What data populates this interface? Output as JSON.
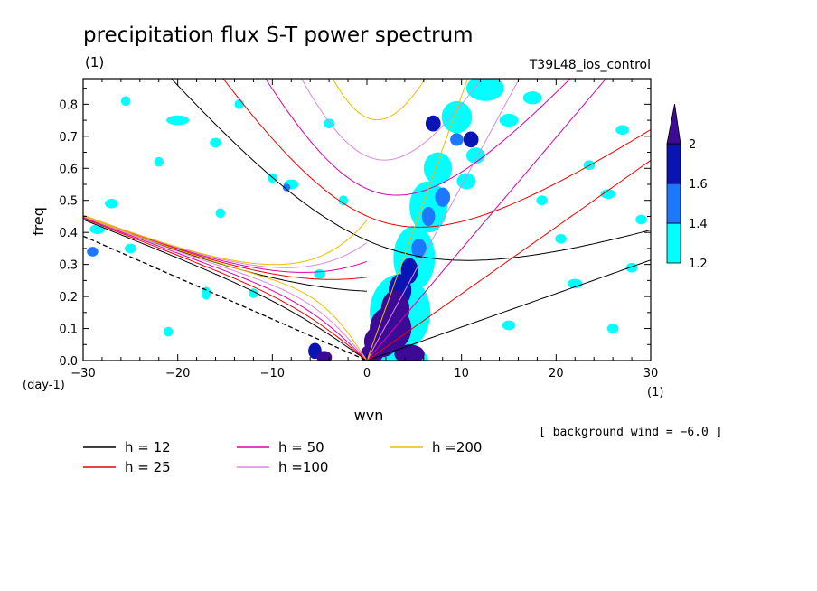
{
  "chart_data": {
    "type": "heatmap",
    "title": "precipitation flux S-T power spectrum",
    "subtitle_left": "(1)",
    "subtitle_right": "T39L48_ios_control",
    "xlabel": "wvn",
    "ylabel": "freq",
    "x_unit_label": "(1)",
    "y_unit_label": "(day-1)",
    "xlim": [
      -30,
      30
    ],
    "ylim": [
      0,
      0.88
    ],
    "x_ticks": [
      -30,
      -20,
      -10,
      0,
      10,
      20,
      30
    ],
    "x_tick_labels": [
      "−30",
      "−20",
      "−10",
      "0",
      "10",
      "20",
      "30"
    ],
    "y_ticks": [
      0,
      0.1,
      0.2,
      0.3,
      0.4,
      0.5,
      0.6,
      0.7,
      0.8
    ],
    "y_tick_labels": [
      "0.0",
      "0.1",
      "0.2",
      "0.3",
      "0.4",
      "0.5",
      "0.6",
      "0.7",
      "0.8"
    ],
    "background_wind": "[ background wind = −6.0 ]",
    "colorbar": {
      "levels": [
        1.2,
        1.4,
        1.6,
        2
      ],
      "labels": [
        "1.2",
        "1.4",
        "1.6",
        "2"
      ],
      "colors": [
        "#00ffff",
        "#1e78ff",
        "#0a14b4",
        "#3c0a96"
      ]
    },
    "legend": [
      {
        "label": "h = 12",
        "color": "#000000"
      },
      {
        "label": "h = 25",
        "color": "#ee0000"
      },
      {
        "label": "h = 50",
        "color": "#dd00aa"
      },
      {
        "label": "h =100",
        "color": "#dd88dd"
      },
      {
        "label": "h =200",
        "color": "#eebb00"
      }
    ],
    "dispersion_h": [
      12,
      25,
      50,
      100,
      200
    ],
    "blobs": [
      {
        "x": 0.5,
        "y": 0.02,
        "rx": 1.2,
        "ry": 0.03,
        "level": 3
      },
      {
        "x": 1.5,
        "y": 0.06,
        "rx": 1.8,
        "ry": 0.05,
        "level": 3
      },
      {
        "x": 2.5,
        "y": 0.1,
        "rx": 2.2,
        "ry": 0.07,
        "level": 3
      },
      {
        "x": 3.0,
        "y": 0.16,
        "rx": 1.5,
        "ry": 0.06,
        "level": 3
      },
      {
        "x": 4.5,
        "y": 0.02,
        "rx": 1.6,
        "ry": 0.03,
        "level": 3
      },
      {
        "x": 3.5,
        "y": 0.22,
        "rx": 1.2,
        "ry": 0.05,
        "level": 2
      },
      {
        "x": 4.5,
        "y": 0.28,
        "rx": 0.9,
        "ry": 0.04,
        "level": 2
      },
      {
        "x": 5.5,
        "y": 0.35,
        "rx": 0.8,
        "ry": 0.03,
        "level": 1
      },
      {
        "x": 6.5,
        "y": 0.45,
        "rx": 0.7,
        "ry": 0.03,
        "level": 1
      },
      {
        "x": 8.0,
        "y": 0.51,
        "rx": 0.8,
        "ry": 0.03,
        "level": 1
      },
      {
        "x": 7.0,
        "y": 0.74,
        "rx": 0.8,
        "ry": 0.025,
        "level": 2
      },
      {
        "x": 11.0,
        "y": 0.69,
        "rx": 0.8,
        "ry": 0.025,
        "level": 2
      },
      {
        "x": 9.5,
        "y": 0.69,
        "rx": 0.7,
        "ry": 0.02,
        "level": 1
      },
      {
        "x": -5.5,
        "y": 0.03,
        "rx": 0.7,
        "ry": 0.025,
        "level": 2
      },
      {
        "x": -4.5,
        "y": 0.01,
        "rx": 0.8,
        "ry": 0.02,
        "level": 3
      },
      {
        "x": 3.0,
        "y": 0.0,
        "rx": 3.5,
        "ry": 0.05,
        "level": 0
      },
      {
        "x": 3.5,
        "y": 0.15,
        "rx": 3.2,
        "ry": 0.12,
        "level": 0
      },
      {
        "x": 5.0,
        "y": 0.32,
        "rx": 2.2,
        "ry": 0.1,
        "level": 0
      },
      {
        "x": 6.5,
        "y": 0.48,
        "rx": 2.0,
        "ry": 0.08,
        "level": 0
      },
      {
        "x": 7.5,
        "y": 0.6,
        "rx": 1.5,
        "ry": 0.05,
        "level": 0
      },
      {
        "x": 9.5,
        "y": 0.76,
        "rx": 1.6,
        "ry": 0.05,
        "level": 0
      },
      {
        "x": 12.5,
        "y": 0.85,
        "rx": 2.0,
        "ry": 0.04,
        "level": 0
      },
      {
        "x": 10.5,
        "y": 0.56,
        "rx": 1.0,
        "ry": 0.025,
        "level": 0
      },
      {
        "x": 11.5,
        "y": 0.64,
        "rx": 1.0,
        "ry": 0.025,
        "level": 0
      },
      {
        "x": 15.0,
        "y": 0.75,
        "rx": 1.0,
        "ry": 0.02,
        "level": 0
      },
      {
        "x": 17.5,
        "y": 0.82,
        "rx": 1.0,
        "ry": 0.02,
        "level": 0
      },
      {
        "x": -20.0,
        "y": 0.75,
        "rx": 1.2,
        "ry": 0.015,
        "level": 0
      },
      {
        "x": -16.0,
        "y": 0.68,
        "rx": 0.6,
        "ry": 0.015,
        "level": 0
      },
      {
        "x": -22.0,
        "y": 0.62,
        "rx": 0.5,
        "ry": 0.015,
        "level": 0
      },
      {
        "x": -28.5,
        "y": 0.41,
        "rx": 0.8,
        "ry": 0.015,
        "level": 0
      },
      {
        "x": -27.0,
        "y": 0.49,
        "rx": 0.7,
        "ry": 0.015,
        "level": 0
      },
      {
        "x": -25.0,
        "y": 0.35,
        "rx": 0.6,
        "ry": 0.015,
        "level": 0
      },
      {
        "x": -29.0,
        "y": 0.34,
        "rx": 0.6,
        "ry": 0.015,
        "level": 1
      },
      {
        "x": -17.0,
        "y": 0.21,
        "rx": 0.5,
        "ry": 0.02,
        "level": 0
      },
      {
        "x": -12.0,
        "y": 0.21,
        "rx": 0.5,
        "ry": 0.015,
        "level": 0
      },
      {
        "x": -21.0,
        "y": 0.09,
        "rx": 0.5,
        "ry": 0.015,
        "level": 0
      },
      {
        "x": -10.0,
        "y": 0.57,
        "rx": 0.5,
        "ry": 0.015,
        "level": 0
      },
      {
        "x": -8.0,
        "y": 0.55,
        "rx": 0.8,
        "ry": 0.015,
        "level": 0
      },
      {
        "x": -8.5,
        "y": 0.54,
        "rx": 0.4,
        "ry": 0.012,
        "level": 1
      },
      {
        "x": -4.0,
        "y": 0.74,
        "rx": 0.6,
        "ry": 0.015,
        "level": 0
      },
      {
        "x": -13.5,
        "y": 0.8,
        "rx": 0.5,
        "ry": 0.015,
        "level": 0
      },
      {
        "x": 15.0,
        "y": 0.11,
        "rx": 0.7,
        "ry": 0.015,
        "level": 0
      },
      {
        "x": 22.0,
        "y": 0.24,
        "rx": 0.8,
        "ry": 0.015,
        "level": 0
      },
      {
        "x": 26.0,
        "y": 0.1,
        "rx": 0.6,
        "ry": 0.015,
        "level": 0
      },
      {
        "x": 25.5,
        "y": 0.52,
        "rx": 0.8,
        "ry": 0.015,
        "level": 0
      },
      {
        "x": 29.0,
        "y": 0.44,
        "rx": 0.6,
        "ry": 0.015,
        "level": 0
      },
      {
        "x": 27.0,
        "y": 0.72,
        "rx": 0.7,
        "ry": 0.015,
        "level": 0
      },
      {
        "x": 23.5,
        "y": 0.61,
        "rx": 0.6,
        "ry": 0.015,
        "level": 0
      },
      {
        "x": 20.5,
        "y": 0.38,
        "rx": 0.6,
        "ry": 0.015,
        "level": 0
      },
      {
        "x": -5.0,
        "y": 0.27,
        "rx": 0.6,
        "ry": 0.015,
        "level": 0
      },
      {
        "x": -15.5,
        "y": 0.46,
        "rx": 0.5,
        "ry": 0.015,
        "level": 0
      },
      {
        "x": -2.5,
        "y": 0.5,
        "rx": 0.5,
        "ry": 0.015,
        "level": 0
      },
      {
        "x": -25.5,
        "y": 0.81,
        "rx": 0.5,
        "ry": 0.015,
        "level": 0
      },
      {
        "x": 18.5,
        "y": 0.5,
        "rx": 0.6,
        "ry": 0.015,
        "level": 0
      },
      {
        "x": 28.0,
        "y": 0.29,
        "rx": 0.6,
        "ry": 0.015,
        "level": 0
      }
    ]
  }
}
